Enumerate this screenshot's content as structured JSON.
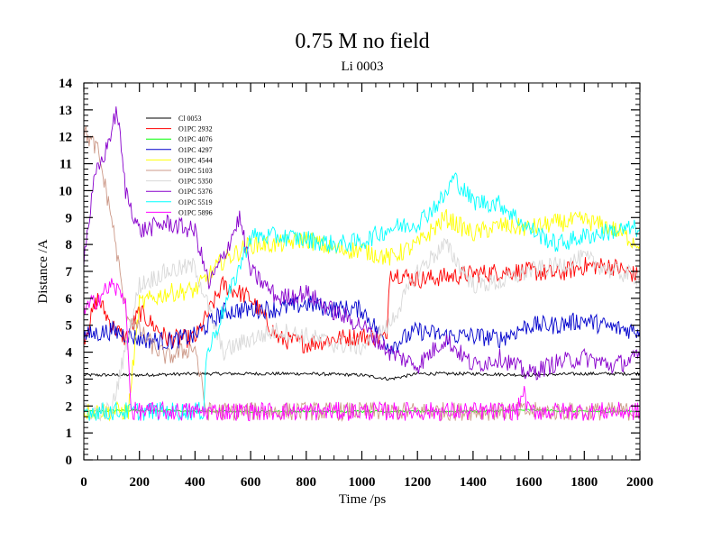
{
  "chart_data": {
    "type": "line",
    "title": "0.75 M no field",
    "subtitle": "Li 0003",
    "xlabel": "Time /ps",
    "ylabel": "Distance /A",
    "xlim": [
      0,
      2000
    ],
    "ylim": [
      0,
      14
    ],
    "x_ticks": [
      0,
      200,
      400,
      600,
      800,
      1000,
      1200,
      1400,
      1600,
      1800,
      2000
    ],
    "y_ticks": [
      0,
      1,
      2,
      3,
      4,
      5,
      6,
      7,
      8,
      9,
      10,
      11,
      12,
      13,
      14
    ],
    "legend_position": "top-left",
    "grid": false,
    "series": [
      {
        "name": "Cl 0053",
        "color": "#000000",
        "x": [
          0,
          200,
          400,
          600,
          800,
          1000,
          1100,
          1200,
          1400,
          1600,
          1800,
          2000
        ],
        "values": [
          3.15,
          3.15,
          3.2,
          3.2,
          3.2,
          3.15,
          3.0,
          3.2,
          3.2,
          3.15,
          3.2,
          3.2
        ]
      },
      {
        "name": "O1PC 2932",
        "color": "#ff0000",
        "x": [
          0,
          50,
          100,
          150,
          200,
          300,
          400,
          500,
          600,
          700,
          800,
          900,
          1000,
          1090,
          1100,
          1200,
          1300,
          1400,
          1500,
          1600,
          1700,
          1800,
          1900,
          2000
        ],
        "values": [
          4.5,
          6.0,
          5.0,
          4.5,
          5.5,
          4.5,
          4.5,
          6.5,
          6.0,
          4.5,
          4.3,
          4.5,
          4.6,
          4.5,
          7.0,
          6.7,
          6.8,
          6.9,
          7.0,
          7.0,
          6.9,
          7.2,
          7.2,
          6.8
        ]
      },
      {
        "name": "O1PC 4076",
        "color": "#00ff00",
        "x": [
          0,
          200,
          400,
          600,
          800,
          1000,
          1200,
          1400,
          1600,
          1800,
          2000
        ],
        "values": [
          1.8,
          1.85,
          1.8,
          1.8,
          1.8,
          1.8,
          1.8,
          1.8,
          1.85,
          1.8,
          1.8
        ]
      },
      {
        "name": "O1PC 4297",
        "color": "#0000cc",
        "x": [
          0,
          100,
          200,
          300,
          400,
          500,
          600,
          700,
          800,
          900,
          1000,
          1100,
          1200,
          1300,
          1400,
          1500,
          1600,
          1700,
          1800,
          1900,
          2000
        ],
        "values": [
          4.6,
          4.8,
          4.5,
          4.4,
          4.6,
          5.5,
          5.6,
          5.6,
          5.8,
          5.6,
          5.6,
          4.2,
          4.8,
          4.6,
          4.6,
          4.5,
          5.0,
          5.0,
          5.2,
          4.9,
          4.8
        ]
      },
      {
        "name": "O1PC 4544",
        "color": "#ffff00",
        "x": [
          0,
          160,
          200,
          300,
          400,
          500,
          600,
          700,
          800,
          900,
          1000,
          1100,
          1200,
          1300,
          1400,
          1500,
          1600,
          1700,
          1800,
          1900,
          2000
        ],
        "values": [
          1.8,
          1.8,
          5.8,
          6.2,
          6.3,
          7.4,
          8.0,
          8.0,
          8.2,
          7.8,
          7.8,
          7.5,
          8.0,
          9.0,
          8.4,
          8.7,
          8.6,
          8.8,
          8.9,
          8.6,
          8.0
        ]
      },
      {
        "name": "O1PC 5103",
        "color": "#cc9988",
        "x": [
          0,
          50,
          100,
          150,
          200,
          250,
          300,
          400,
          440,
          500,
          600,
          700,
          800,
          900,
          1000,
          1200,
          1400,
          1600,
          1800,
          2000
        ],
        "values": [
          12.2,
          11.5,
          9.0,
          5.5,
          4.8,
          4.2,
          3.8,
          4.2,
          1.8,
          1.8,
          1.8,
          1.8,
          1.8,
          1.8,
          1.8,
          1.8,
          1.8,
          1.8,
          1.8,
          1.8
        ]
      },
      {
        "name": "O1PC 5350",
        "color": "#d8d8d8",
        "x": [
          0,
          100,
          200,
          300,
          400,
          500,
          600,
          700,
          800,
          900,
          1000,
          1100,
          1200,
          1300,
          1400,
          1500,
          1600,
          1700,
          1800,
          1900,
          2000
        ],
        "values": [
          1.8,
          1.8,
          6.5,
          7.0,
          7.2,
          4.0,
          4.5,
          4.8,
          4.6,
          4.3,
          4.2,
          5.0,
          7.0,
          8.0,
          6.5,
          6.6,
          7.0,
          7.2,
          7.5,
          7.0,
          6.8
        ]
      },
      {
        "name": "O1PC 5376",
        "color": "#8800cc",
        "x": [
          0,
          40,
          80,
          120,
          150,
          200,
          300,
          400,
          450,
          500,
          560,
          600,
          700,
          800,
          900,
          1000,
          1100,
          1200,
          1300,
          1400,
          1500,
          1600,
          1700,
          1800,
          1900,
          2000
        ],
        "values": [
          7.5,
          10.5,
          11.5,
          13.0,
          10.0,
          8.5,
          8.8,
          8.5,
          6.5,
          7.5,
          9.0,
          7.0,
          6.0,
          6.2,
          5.5,
          5.0,
          4.0,
          3.5,
          4.5,
          3.5,
          3.8,
          3.2,
          3.6,
          3.8,
          3.5,
          3.8
        ]
      },
      {
        "name": "O1PC 5519",
        "color": "#00ffff",
        "x": [
          0,
          200,
          430,
          440,
          500,
          600,
          700,
          800,
          900,
          1000,
          1100,
          1200,
          1300,
          1330,
          1400,
          1500,
          1600,
          1700,
          1800,
          1900,
          2000
        ],
        "values": [
          1.8,
          1.8,
          1.8,
          3.8,
          5.5,
          8.3,
          8.3,
          8.2,
          8.0,
          8.1,
          8.6,
          8.8,
          9.8,
          10.5,
          9.6,
          9.5,
          8.6,
          8.0,
          8.3,
          8.5,
          8.6
        ]
      },
      {
        "name": "O1PC 5896",
        "color": "#ff00ff",
        "x": [
          0,
          50,
          100,
          150,
          170,
          200,
          400,
          600,
          800,
          1000,
          1200,
          1400,
          1560,
          1580,
          1600,
          1800,
          2000
        ],
        "values": [
          5.5,
          6.0,
          6.5,
          6.0,
          1.8,
          1.8,
          1.8,
          1.8,
          1.8,
          1.8,
          1.8,
          1.8,
          1.8,
          2.6,
          1.8,
          1.8,
          1.8
        ]
      }
    ]
  }
}
